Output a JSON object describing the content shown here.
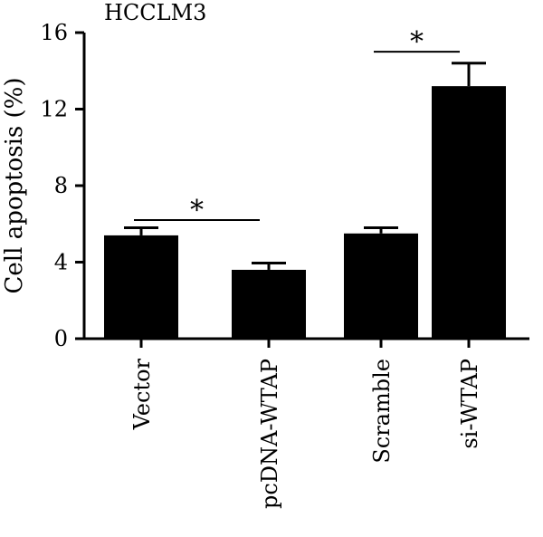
{
  "chart_data": {
    "type": "bar",
    "title": "HCCLM3",
    "xlabel": "",
    "ylabel": "Cell apoptosis (%)",
    "ylim": [
      0,
      16
    ],
    "yticks": [
      0,
      4,
      8,
      12,
      16
    ],
    "categories": [
      "Vector",
      "pcDNA-WTAP",
      "Scramble",
      "si-WTAP"
    ],
    "values": [
      5.4,
      3.6,
      5.5,
      13.2
    ],
    "errors": [
      0.4,
      0.35,
      0.3,
      1.2
    ],
    "bar_color": "#000000",
    "grid": false,
    "legend": "none",
    "significance": [
      {
        "from": 0,
        "to": 1,
        "y": 6.2,
        "label": "*"
      },
      {
        "from": 2,
        "to": 3,
        "y": 15.0,
        "label": "*"
      }
    ]
  }
}
